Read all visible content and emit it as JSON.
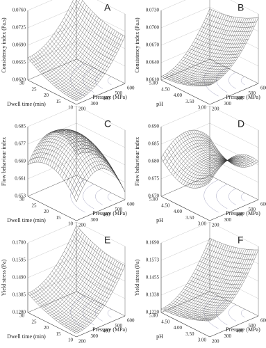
{
  "panels": [
    {
      "label": "A",
      "z_title": "Consistency index (Pa.s)",
      "z_ticks": [
        "0.0620",
        "0.0655",
        "0.0690",
        "0.0725",
        "0.0760"
      ],
      "x_title": "Dwell time (min)",
      "x_ticks": [
        "10",
        "15",
        "20",
        "25",
        "30"
      ],
      "y_title": "Pressure (MPa)",
      "y_ticks": [
        "200",
        "300",
        "400",
        "500",
        "600"
      ]
    },
    {
      "label": "B",
      "z_title": "Consistency index (Pa.s)",
      "z_ticks": [
        "0.0610",
        "0.0640",
        "0.0670",
        "0.0700",
        "0.0730"
      ],
      "x_title": "pH",
      "x_ticks": [
        "3.00",
        "3.50",
        "4.00",
        "4.50",
        "5.00"
      ],
      "y_title": "Pressure (MPa)",
      "y_ticks": [
        "200",
        "300",
        "400",
        "500",
        "600"
      ]
    },
    {
      "label": "C",
      "z_title": "Flow behaviour index",
      "z_ticks": [
        "0.653",
        "0.661",
        "0.669",
        "0.677",
        "0.685"
      ],
      "x_title": "Dwell time (min)",
      "x_ticks": [
        "10",
        "15",
        "20",
        "25",
        "30"
      ],
      "y_title": "Pressure (MPa)",
      "y_ticks": [
        "200",
        "300",
        "400",
        "500",
        "600"
      ]
    },
    {
      "label": "D",
      "z_title": "Flow behaviour index",
      "z_ticks": [
        "0.670",
        "0.675",
        "0.680",
        "0.685",
        "0.690"
      ],
      "x_title": "pH",
      "x_ticks": [
        "3.00",
        "3.50",
        "4.00",
        "4.50",
        "5.00"
      ],
      "y_title": "Pressure (MPa)",
      "y_ticks": [
        "200",
        "300",
        "400",
        "500",
        "600"
      ]
    },
    {
      "label": "E",
      "z_title": "Yield stress (Pa)",
      "z_ticks": [
        "0.1280",
        "0.1385",
        "0.1490",
        "0.1595",
        "0.1700"
      ],
      "x_title": "Dwell time (min)",
      "x_ticks": [
        "10",
        "15",
        "20",
        "25",
        "30"
      ],
      "y_title": "Pressure (MPa)",
      "y_ticks": [
        "200",
        "300",
        "400",
        "500",
        "600"
      ]
    },
    {
      "label": "F",
      "z_title": "Yield stress (Pa)",
      "z_ticks": [
        "0.1220",
        "0.1338",
        "0.1455",
        "0.1573",
        "0.1690"
      ],
      "x_title": "pH",
      "x_ticks": [
        "3.00",
        "3.50",
        "4.00",
        "4.50",
        "5.00"
      ],
      "y_title": "Pressure (MPa)",
      "y_ticks": [
        "200",
        "300",
        "400",
        "500",
        "600"
      ]
    }
  ]
}
